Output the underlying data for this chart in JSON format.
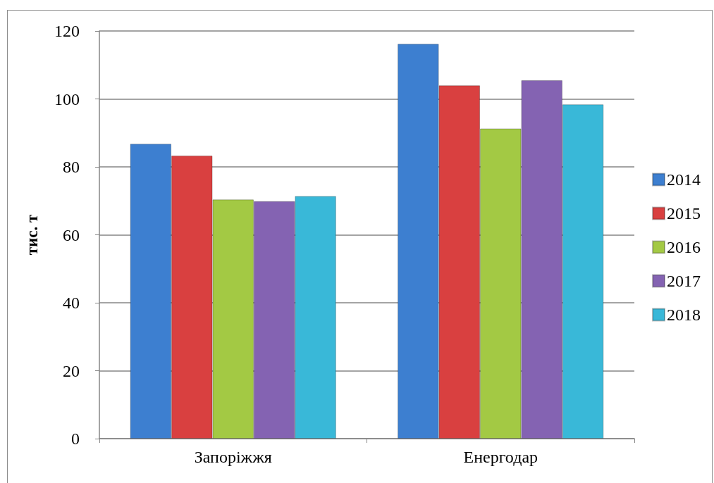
{
  "chart_data": {
    "type": "bar",
    "ylabel": "тис. т",
    "categories": [
      "Запоріжжя",
      "Енергодар"
    ],
    "series": [
      {
        "name": "2014",
        "color": "#3d7fd0",
        "values": [
          86.8,
          116.2
        ]
      },
      {
        "name": "2015",
        "color": "#d94040",
        "values": [
          83.3,
          104.0
        ]
      },
      {
        "name": "2016",
        "color": "#a3c944",
        "values": [
          70.4,
          91.3
        ]
      },
      {
        "name": "2017",
        "color": "#8463b2",
        "values": [
          69.9,
          105.5
        ]
      },
      {
        "name": "2018",
        "color": "#39b8d8",
        "values": [
          71.4,
          98.4
        ]
      }
    ],
    "ylim": [
      0,
      120
    ],
    "yticks": [
      0,
      20,
      40,
      60,
      80,
      100,
      120
    ],
    "grid": "y",
    "legend": "right"
  }
}
